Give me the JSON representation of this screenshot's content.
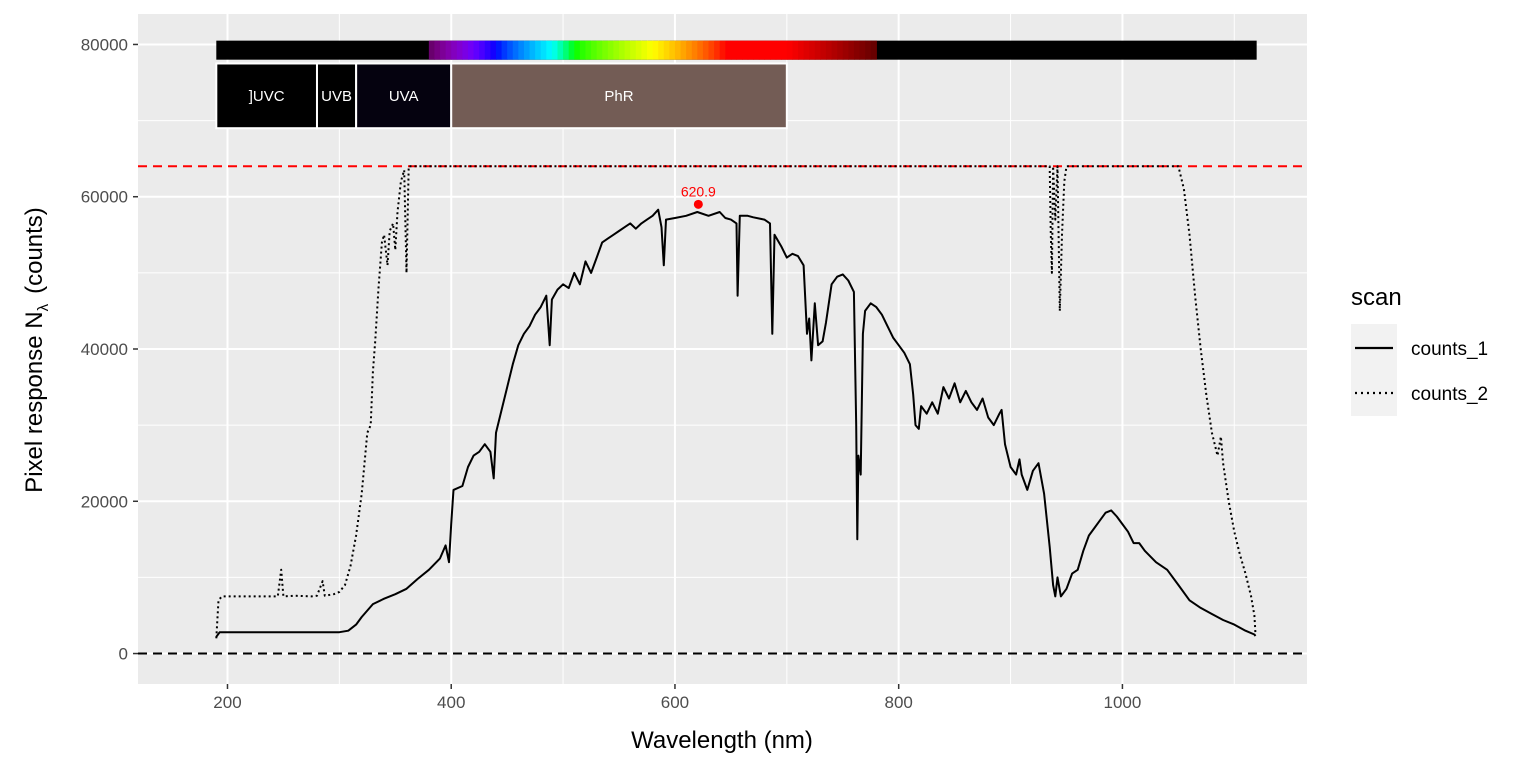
{
  "chart_data": {
    "type": "line",
    "title": "",
    "xlabel": "Wavelength (nm)",
    "ylabel_main": "Pixel  response  N",
    "ylabel_sub": "λ",
    "ylabel_unit": "(counts)",
    "xlim": [
      120,
      1165
    ],
    "ylim": [
      -4000,
      84000
    ],
    "x_ticks": [
      200,
      400,
      600,
      800,
      1000
    ],
    "x_tick_labels": [
      "200",
      "400",
      "600",
      "800",
      "1000"
    ],
    "y_ticks": [
      0,
      20000,
      40000,
      60000,
      80000
    ],
    "y_tick_labels": [
      "0",
      "20000",
      "40000",
      "60000",
      "80000"
    ],
    "grid": true,
    "hlines": [
      {
        "y": 64000,
        "color": "#ff0000",
        "style": "dashed"
      },
      {
        "y": 0,
        "color": "#000000",
        "style": "dashed"
      }
    ],
    "peak": {
      "x": 620.9,
      "y": 59000,
      "label": "620.9",
      "color": "#ff0000"
    },
    "wavebands": [
      {
        "label": "]UVC",
        "from": 190,
        "to": 280,
        "color": "#000000"
      },
      {
        "label": "UVB",
        "from": 280,
        "to": 315,
        "color": "#000000"
      },
      {
        "label": "UVA",
        "from": 315,
        "to": 400,
        "color": "#05020f"
      },
      {
        "label": "PhR",
        "from": 400,
        "to": 700,
        "color": "#735c55"
      }
    ],
    "color_bar": {
      "from": 190,
      "to": 1120,
      "y_from": 78000,
      "y_to": 80500
    },
    "band_box_y": [
      69000,
      77500
    ],
    "legend": {
      "title": "scan",
      "position": "right"
    },
    "series": [
      {
        "name": "counts_1",
        "line": "solid",
        "color": "#000000",
        "points": [
          [
            190,
            2200
          ],
          [
            193,
            2800
          ],
          [
            250,
            2800
          ],
          [
            300,
            2800
          ],
          [
            308,
            3000
          ],
          [
            315,
            3800
          ],
          [
            320,
            4800
          ],
          [
            330,
            6500
          ],
          [
            340,
            7200
          ],
          [
            350,
            7800
          ],
          [
            360,
            8500
          ],
          [
            370,
            9800
          ],
          [
            380,
            11000
          ],
          [
            390,
            12500
          ],
          [
            395,
            14200
          ],
          [
            398,
            12000
          ],
          [
            400,
            17000
          ],
          [
            402,
            21500
          ],
          [
            410,
            22000
          ],
          [
            415,
            24500
          ],
          [
            420,
            26000
          ],
          [
            425,
            26500
          ],
          [
            430,
            27500
          ],
          [
            435,
            26500
          ],
          [
            438,
            23000
          ],
          [
            440,
            29000
          ],
          [
            445,
            32000
          ],
          [
            450,
            35000
          ],
          [
            455,
            38000
          ],
          [
            460,
            40500
          ],
          [
            465,
            42000
          ],
          [
            470,
            43000
          ],
          [
            475,
            44500
          ],
          [
            480,
            45500
          ],
          [
            485,
            47000
          ],
          [
            488,
            40500
          ],
          [
            490,
            46500
          ],
          [
            495,
            47800
          ],
          [
            500,
            48500
          ],
          [
            505,
            48000
          ],
          [
            510,
            50000
          ],
          [
            515,
            48500
          ],
          [
            520,
            51500
          ],
          [
            525,
            50000
          ],
          [
            530,
            52000
          ],
          [
            535,
            54000
          ],
          [
            540,
            54500
          ],
          [
            545,
            55000
          ],
          [
            550,
            55500
          ],
          [
            555,
            56000
          ],
          [
            560,
            56500
          ],
          [
            565,
            55800
          ],
          [
            570,
            56500
          ],
          [
            575,
            57000
          ],
          [
            580,
            57500
          ],
          [
            585,
            58300
          ],
          [
            588,
            56000
          ],
          [
            590,
            51000
          ],
          [
            592,
            57000
          ],
          [
            600,
            57200
          ],
          [
            610,
            57500
          ],
          [
            620,
            58000
          ],
          [
            630,
            57500
          ],
          [
            640,
            58000
          ],
          [
            645,
            57200
          ],
          [
            650,
            57000
          ],
          [
            655,
            56500
          ],
          [
            656,
            47000
          ],
          [
            658,
            57500
          ],
          [
            665,
            57500
          ],
          [
            670,
            57300
          ],
          [
            680,
            57000
          ],
          [
            685,
            56500
          ],
          [
            687,
            42000
          ],
          [
            689,
            55000
          ],
          [
            695,
            53500
          ],
          [
            700,
            52000
          ],
          [
            705,
            52500
          ],
          [
            710,
            52200
          ],
          [
            715,
            51000
          ],
          [
            718,
            42000
          ],
          [
            720,
            44000
          ],
          [
            722,
            38500
          ],
          [
            725,
            46000
          ],
          [
            728,
            40500
          ],
          [
            732,
            41000
          ],
          [
            735,
            43500
          ],
          [
            740,
            48500
          ],
          [
            745,
            49500
          ],
          [
            750,
            49800
          ],
          [
            755,
            49000
          ],
          [
            760,
            47500
          ],
          [
            762,
            30000
          ],
          [
            763,
            15000
          ],
          [
            764,
            26000
          ],
          [
            766,
            23500
          ],
          [
            768,
            42000
          ],
          [
            770,
            45000
          ],
          [
            775,
            46000
          ],
          [
            780,
            45500
          ],
          [
            785,
            44500
          ],
          [
            790,
            43000
          ],
          [
            795,
            41500
          ],
          [
            800,
            40500
          ],
          [
            805,
            39500
          ],
          [
            810,
            38000
          ],
          [
            813,
            34000
          ],
          [
            815,
            30000
          ],
          [
            818,
            29500
          ],
          [
            820,
            32500
          ],
          [
            825,
            31500
          ],
          [
            830,
            33000
          ],
          [
            835,
            31500
          ],
          [
            840,
            35000
          ],
          [
            845,
            33500
          ],
          [
            850,
            35500
          ],
          [
            855,
            33000
          ],
          [
            860,
            34500
          ],
          [
            865,
            33000
          ],
          [
            870,
            32000
          ],
          [
            875,
            33500
          ],
          [
            880,
            31000
          ],
          [
            885,
            30000
          ],
          [
            890,
            31500
          ],
          [
            892,
            32000
          ],
          [
            895,
            27500
          ],
          [
            900,
            24500
          ],
          [
            905,
            23500
          ],
          [
            908,
            25500
          ],
          [
            910,
            23500
          ],
          [
            915,
            21500
          ],
          [
            920,
            24000
          ],
          [
            925,
            25000
          ],
          [
            930,
            21000
          ],
          [
            935,
            14000
          ],
          [
            938,
            9000
          ],
          [
            940,
            7500
          ],
          [
            942,
            10000
          ],
          [
            945,
            7500
          ],
          [
            950,
            8500
          ],
          [
            955,
            10500
          ],
          [
            960,
            11000
          ],
          [
            965,
            13500
          ],
          [
            970,
            15500
          ],
          [
            975,
            16500
          ],
          [
            980,
            17500
          ],
          [
            985,
            18500
          ],
          [
            990,
            18800
          ],
          [
            995,
            18000
          ],
          [
            1000,
            17000
          ],
          [
            1005,
            16000
          ],
          [
            1010,
            14500
          ],
          [
            1015,
            14500
          ],
          [
            1020,
            13500
          ],
          [
            1030,
            12000
          ],
          [
            1040,
            11000
          ],
          [
            1050,
            9000
          ],
          [
            1060,
            7000
          ],
          [
            1070,
            6000
          ],
          [
            1080,
            5200
          ],
          [
            1090,
            4400
          ],
          [
            1100,
            3800
          ],
          [
            1110,
            3000
          ],
          [
            1118,
            2500
          ],
          [
            1119,
            2300
          ]
        ]
      },
      {
        "name": "counts_2",
        "line": "dotted",
        "color": "#000000",
        "points": [
          [
            190,
            2000
          ],
          [
            192,
            7000
          ],
          [
            195,
            7500
          ],
          [
            220,
            7500
          ],
          [
            245,
            7500
          ],
          [
            248,
            11000
          ],
          [
            250,
            7500
          ],
          [
            260,
            7600
          ],
          [
            275,
            7500
          ],
          [
            280,
            7600
          ],
          [
            285,
            9500
          ],
          [
            287,
            7600
          ],
          [
            295,
            7800
          ],
          [
            300,
            8100
          ],
          [
            305,
            9000
          ],
          [
            310,
            11500
          ],
          [
            315,
            15500
          ],
          [
            320,
            21000
          ],
          [
            325,
            29000
          ],
          [
            328,
            30000
          ],
          [
            330,
            37000
          ],
          [
            332,
            41000
          ],
          [
            335,
            48000
          ],
          [
            338,
            54000
          ],
          [
            340,
            55000
          ],
          [
            343,
            51000
          ],
          [
            345,
            55500
          ],
          [
            348,
            56500
          ],
          [
            350,
            53000
          ],
          [
            352,
            58000
          ],
          [
            355,
            62000
          ],
          [
            358,
            63500
          ],
          [
            360,
            50000
          ],
          [
            362,
            64000
          ],
          [
            365,
            64000
          ],
          [
            380,
            64000
          ],
          [
            500,
            64000
          ],
          [
            700,
            64000
          ],
          [
            900,
            64000
          ],
          [
            935,
            64000
          ],
          [
            936,
            55000
          ],
          [
            937,
            50000
          ],
          [
            938,
            64000
          ],
          [
            940,
            57000
          ],
          [
            942,
            64000
          ],
          [
            944,
            45000
          ],
          [
            946,
            55000
          ],
          [
            948,
            62000
          ],
          [
            950,
            64000
          ],
          [
            952,
            64000
          ],
          [
            1000,
            64000
          ],
          [
            1050,
            64000
          ],
          [
            1055,
            61000
          ],
          [
            1060,
            55000
          ],
          [
            1065,
            47000
          ],
          [
            1070,
            40000
          ],
          [
            1075,
            34000
          ],
          [
            1080,
            29000
          ],
          [
            1085,
            26000
          ],
          [
            1088,
            28500
          ],
          [
            1090,
            25000
          ],
          [
            1095,
            20000
          ],
          [
            1100,
            16000
          ],
          [
            1105,
            13000
          ],
          [
            1110,
            10500
          ],
          [
            1115,
            7500
          ],
          [
            1118,
            5000
          ],
          [
            1119,
            2500
          ]
        ]
      }
    ]
  }
}
